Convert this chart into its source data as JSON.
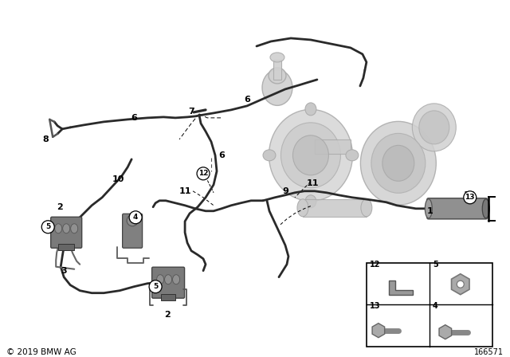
{
  "bg_color": "#ffffff",
  "copyright": "© 2019 BMW AG",
  "diagram_number": "166571",
  "hose_color": "#2a2a2a",
  "component_color": "#888888",
  "component_light": "#c8c8c8",
  "component_dark": "#555555",
  "turbo_color": "#d0d0d0",
  "turbo_edge": "#aaaaaa"
}
